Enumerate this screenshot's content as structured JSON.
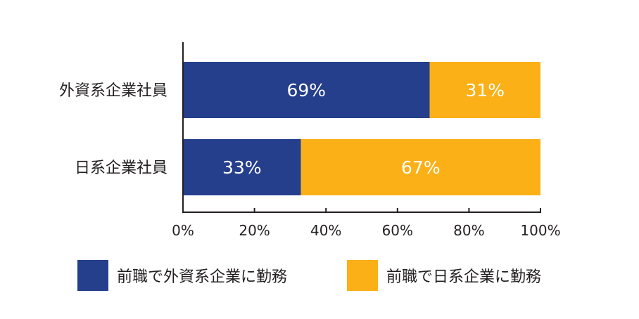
{
  "chart_data": {
    "type": "bar",
    "orientation": "horizontal",
    "stacked": true,
    "categories": [
      "外資系企業社員",
      "日系企業社員"
    ],
    "series": [
      {
        "name": "前職で外資系企業に勤務",
        "values": [
          69,
          33
        ],
        "labels": [
          "69%",
          "33%"
        ],
        "color": "#253f8c"
      },
      {
        "name": "前職で日系企業に勤務",
        "values": [
          31,
          67
        ],
        "labels": [
          "31%",
          "67%"
        ],
        "color": "#fbb018"
      }
    ],
    "xlim": [
      0,
      100
    ],
    "xticks": [
      0,
      20,
      40,
      60,
      80,
      100
    ],
    "xtick_labels": [
      "0%",
      "20%",
      "40%",
      "60%",
      "80%",
      "100%"
    ],
    "grid": false,
    "legend_position": "bottom"
  }
}
